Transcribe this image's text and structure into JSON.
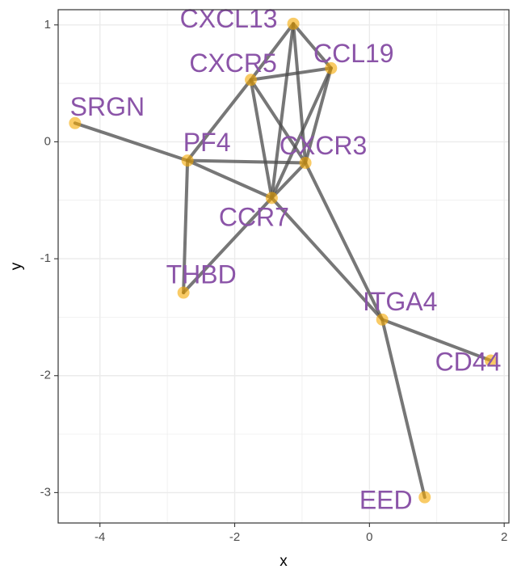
{
  "chart_data": {
    "type": "scatter",
    "title": "",
    "xlabel": "x",
    "ylabel": "y",
    "xlim": [
      -4.62,
      2.07
    ],
    "ylim": [
      -3.26,
      1.13
    ],
    "x_ticks": [
      -4,
      -2,
      0,
      2
    ],
    "y_ticks": [
      -3,
      -2,
      -1,
      0,
      1
    ],
    "x_tick_labels": [
      "-4",
      "-2",
      "0",
      "2"
    ],
    "y_tick_labels": [
      "-3",
      "-2",
      "-1",
      "0",
      "1"
    ],
    "grid": true,
    "legend": "none",
    "colors": {
      "point": "#f5a800",
      "label": "#8b54a8",
      "edge": "#4a4a4a",
      "grid": "#ebebeb",
      "panel_border": "#333333"
    },
    "nodes": [
      {
        "name": "CXCL13",
        "x": -1.13,
        "y": 1.01
      },
      {
        "name": "CCL19",
        "x": -0.57,
        "y": 0.63
      },
      {
        "name": "CXCR5",
        "x": -1.76,
        "y": 0.53
      },
      {
        "name": "SRGN",
        "x": -4.37,
        "y": 0.16
      },
      {
        "name": "PF4",
        "x": -2.7,
        "y": -0.16
      },
      {
        "name": "CXCR3",
        "x": -0.95,
        "y": -0.18
      },
      {
        "name": "CCR7",
        "x": -1.45,
        "y": -0.48
      },
      {
        "name": "THBD",
        "x": -2.76,
        "y": -1.29
      },
      {
        "name": "ITGA4",
        "x": 0.19,
        "y": -1.52
      },
      {
        "name": "CD44",
        "x": 1.8,
        "y": -1.87
      },
      {
        "name": "EED",
        "x": 0.82,
        "y": -3.04
      }
    ],
    "edges": [
      [
        "CXCL13",
        "CCL19"
      ],
      [
        "CXCL13",
        "CXCR5"
      ],
      [
        "CXCL13",
        "CXCR3"
      ],
      [
        "CXCL13",
        "CCR7"
      ],
      [
        "CCL19",
        "CXCR5"
      ],
      [
        "CCL19",
        "CXCR3"
      ],
      [
        "CCL19",
        "CCR7"
      ],
      [
        "CXCR5",
        "CXCR3"
      ],
      [
        "CXCR5",
        "CCR7"
      ],
      [
        "CXCR5",
        "PF4"
      ],
      [
        "SRGN",
        "PF4"
      ],
      [
        "PF4",
        "CXCR3"
      ],
      [
        "PF4",
        "CCR7"
      ],
      [
        "PF4",
        "THBD"
      ],
      [
        "CXCR3",
        "CCR7"
      ],
      [
        "CXCR3",
        "ITGA4"
      ],
      [
        "CCR7",
        "THBD"
      ],
      [
        "CCR7",
        "ITGA4"
      ],
      [
        "ITGA4",
        "CD44"
      ],
      [
        "ITGA4",
        "EED"
      ]
    ]
  }
}
